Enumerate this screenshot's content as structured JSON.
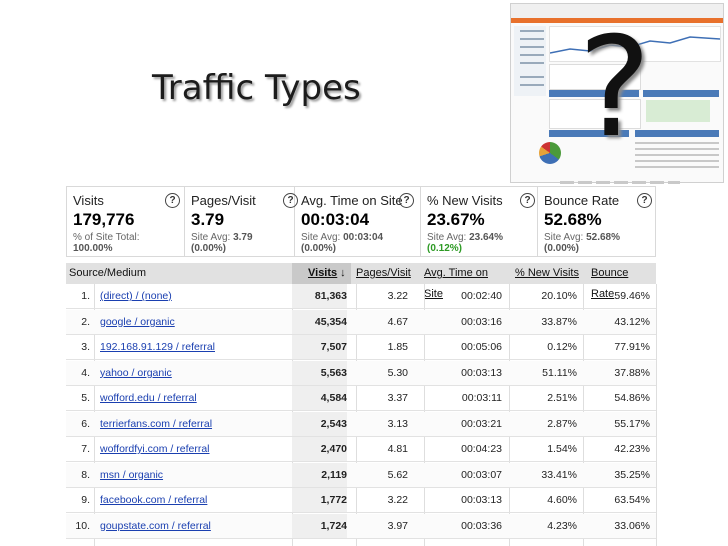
{
  "slide": {
    "title": "Traffic Types",
    "question_mark": "?"
  },
  "scorecards": [
    {
      "name": "Visits",
      "value": "179,776",
      "sub_prefix": "% of Site Total:",
      "sub_value": "",
      "pct": "100.00%",
      "pct_color": "#555555"
    },
    {
      "name": "Pages/Visit",
      "value": "3.79",
      "sub_prefix": "Site Avg:",
      "sub_value": "3.79",
      "pct": "(0.00%)",
      "pct_color": "#555555"
    },
    {
      "name": "Avg. Time on Site",
      "value": "00:03:04",
      "sub_prefix": "Site Avg:",
      "sub_value": "00:03:04",
      "pct": "(0.00%)",
      "pct_color": "#555555"
    },
    {
      "name": "% New Visits",
      "value": "23.67%",
      "sub_prefix": "Site Avg:",
      "sub_value": "23.64%",
      "pct": "(0.12%)",
      "pct_color": "#2d9a24"
    },
    {
      "name": "Bounce Rate",
      "value": "52.68%",
      "sub_prefix": "Site Avg:",
      "sub_value": "52.68%",
      "pct": "(0.00%)",
      "pct_color": "#555555"
    }
  ],
  "table": {
    "headers": {
      "source": "Source/Medium",
      "visits": "Visits",
      "pages": "Pages/Visit",
      "time": "Avg. Time on Site",
      "new": "% New Visits",
      "bounce": "Bounce Rate"
    },
    "rows": [
      {
        "n": "1.",
        "source": "(direct) / (none)",
        "visits": "81,363",
        "pages": "3.22",
        "time": "00:02:40",
        "new": "20.10%",
        "bounce": "59.46%"
      },
      {
        "n": "2.",
        "source": "google / organic",
        "visits": "45,354",
        "pages": "4.67",
        "time": "00:03:16",
        "new": "33.87%",
        "bounce": "43.12%"
      },
      {
        "n": "3.",
        "source": "192.168.91.129 / referral",
        "visits": "7,507",
        "pages": "1.85",
        "time": "00:05:06",
        "new": "0.12%",
        "bounce": "77.91%"
      },
      {
        "n": "4.",
        "source": "yahoo / organic",
        "visits": "5,563",
        "pages": "5.30",
        "time": "00:03:13",
        "new": "51.11%",
        "bounce": "37.88%"
      },
      {
        "n": "5.",
        "source": "wofford.edu / referral",
        "visits": "4,584",
        "pages": "3.37",
        "time": "00:03:11",
        "new": "2.51%",
        "bounce": "54.86%"
      },
      {
        "n": "6.",
        "source": "terrierfans.com / referral",
        "visits": "2,543",
        "pages": "3.13",
        "time": "00:03:21",
        "new": "2.87%",
        "bounce": "55.17%"
      },
      {
        "n": "7.",
        "source": "woffordfyi.com / referral",
        "visits": "2,470",
        "pages": "4.81",
        "time": "00:04:23",
        "new": "1.54%",
        "bounce": "42.23%"
      },
      {
        "n": "8.",
        "source": "msn / organic",
        "visits": "2,119",
        "pages": "5.62",
        "time": "00:03:07",
        "new": "33.41%",
        "bounce": "35.25%"
      },
      {
        "n": "9.",
        "source": "facebook.com / referral",
        "visits": "1,772",
        "pages": "3.22",
        "time": "00:03:13",
        "new": "4.60%",
        "bounce": "63.54%"
      },
      {
        "n": "10.",
        "source": "goupstate.com / referral",
        "visits": "1,724",
        "pages": "3.97",
        "time": "00:03:36",
        "new": "4.23%",
        "bounce": "33.06%"
      }
    ]
  }
}
